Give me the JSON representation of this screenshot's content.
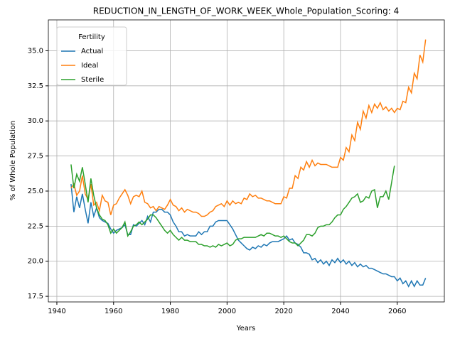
{
  "chart_data": {
    "type": "line",
    "title": "REDUCTION_IN_LENGTH_OF_WORK_WEEK_Whole_Population_Scoring: 4",
    "x_label": "Years",
    "y_label": "% of Whole Population",
    "legend_title": "Fertility",
    "legend": "upper left",
    "grid": true,
    "xlim": [
      1937,
      2076.6
    ],
    "xticks": [
      1940,
      1960,
      1980,
      2000,
      2020,
      2040,
      2060
    ],
    "ylim": [
      17.1,
      37.2
    ],
    "yticks": [
      17.5,
      {
        "value": 20,
        "label": "20.0"
      },
      22.5,
      {
        "value": 25,
        "label": "25.0"
      },
      27.5,
      {
        "value": 30,
        "label": "30.0"
      },
      32.5,
      {
        "value": 35,
        "label": "35.0"
      }
    ],
    "x": [
      1945,
      1946,
      1947,
      1948,
      1949,
      1950,
      1951,
      1952,
      1953,
      1954,
      1955,
      1956,
      1957,
      1958,
      1959,
      1960,
      1961,
      1962,
      1963,
      1964,
      1965,
      1966,
      1967,
      1968,
      1969,
      1970,
      1971,
      1972,
      1973,
      1974,
      1975,
      1976,
      1977,
      1978,
      1979,
      1980,
      1981,
      1982,
      1983,
      1984,
      1985,
      1986,
      1987,
      1988,
      1989,
      1990,
      1991,
      1992,
      1993,
      1994,
      1995,
      1996,
      1997,
      1998,
      1999,
      2000,
      2001,
      2002,
      2003,
      2004,
      2005,
      2006,
      2007,
      2008,
      2009,
      2010,
      2011,
      2012,
      2013,
      2014,
      2015,
      2016,
      2017,
      2018,
      2019,
      2020,
      2021,
      2022,
      2023,
      2024,
      2025,
      2026,
      2027,
      2028,
      2029,
      2030,
      2031,
      2032,
      2033,
      2034,
      2035,
      2036,
      2037,
      2038,
      2039,
      2040,
      2041,
      2042,
      2043,
      2044,
      2045,
      2046,
      2047,
      2048,
      2049,
      2050,
      2051,
      2052,
      2053,
      2054,
      2055,
      2056,
      2057,
      2058,
      2059,
      2060,
      2061,
      2062,
      2063,
      2064,
      2065,
      2066,
      2067,
      2068,
      2069,
      2070
    ],
    "series": [
      {
        "name": "Actual",
        "color": "#1f77b4",
        "values": [
          25.5,
          23.5,
          24.6,
          23.8,
          24.8,
          23.7,
          22.7,
          24.2,
          23.2,
          23.8,
          23.1,
          22.9,
          22.8,
          22.7,
          22.3,
          22.0,
          22.2,
          22.3,
          22.4,
          22.6,
          21.9,
          21.9,
          22.6,
          22.5,
          22.7,
          22.9,
          22.6,
          23.2,
          22.8,
          23.5,
          23.5,
          23.7,
          23.7,
          23.5,
          23.5,
          23.3,
          22.8,
          22.5,
          22.1,
          22.1,
          21.8,
          21.9,
          21.8,
          21.8,
          21.8,
          22.1,
          21.9,
          22.1,
          22.1,
          22.5,
          22.5,
          22.8,
          22.9,
          22.9,
          22.9,
          22.9,
          22.6,
          22.3,
          21.9,
          21.5,
          21.3,
          21.1,
          20.9,
          20.8,
          21.0,
          20.9,
          21.1,
          21.0,
          21.2,
          21.1,
          21.3,
          21.4,
          21.4,
          21.4,
          21.5,
          21.6,
          21.8,
          21.5,
          21.6,
          21.3,
          21.2,
          21.0,
          20.6,
          20.6,
          20.5,
          20.1,
          20.2,
          19.9,
          20.1,
          19.8,
          20.0,
          19.7,
          20.1,
          19.9,
          20.2,
          19.9,
          20.1,
          19.8,
          20.0,
          19.7,
          19.9,
          19.6,
          19.8,
          19.6,
          19.7,
          19.5,
          19.5,
          19.4,
          19.3,
          19.2,
          19.1,
          19.1,
          19.0,
          18.9,
          18.9,
          18.6,
          18.8,
          18.4,
          18.6,
          18.2,
          18.6,
          18.2,
          18.6,
          18.3,
          18.3,
          18.8
        ]
      },
      {
        "name": "Ideal",
        "color": "#ff7f0e",
        "values": [
          25.2,
          25.5,
          24.7,
          25.0,
          26.1,
          24.8,
          24.4,
          25.5,
          24.0,
          24.2,
          23.6,
          24.7,
          24.3,
          24.2,
          23.3,
          24.0,
          24.1,
          24.5,
          24.8,
          25.1,
          24.7,
          24.1,
          24.6,
          24.7,
          24.6,
          25.0,
          24.2,
          24.1,
          23.8,
          23.9,
          23.6,
          23.9,
          23.8,
          23.7,
          24.0,
          24.4,
          24.0,
          23.9,
          23.6,
          23.8,
          23.5,
          23.7,
          23.6,
          23.5,
          23.5,
          23.4,
          23.2,
          23.2,
          23.3,
          23.5,
          23.6,
          23.9,
          24.0,
          24.1,
          23.9,
          24.3,
          24.0,
          24.3,
          24.1,
          24.2,
          24.1,
          24.5,
          24.4,
          24.8,
          24.6,
          24.7,
          24.5,
          24.5,
          24.4,
          24.3,
          24.3,
          24.2,
          24.1,
          24.1,
          24.1,
          24.6,
          24.5,
          25.2,
          25.2,
          26.1,
          25.9,
          26.7,
          26.5,
          27.1,
          26.7,
          27.2,
          26.8,
          27.0,
          26.9,
          26.9,
          26.9,
          26.8,
          26.7,
          26.7,
          26.7,
          27.4,
          27.2,
          28.1,
          27.8,
          29.0,
          28.6,
          29.9,
          29.4,
          30.7,
          30.2,
          31.1,
          30.6,
          31.2,
          30.9,
          31.3,
          30.8,
          31.0,
          30.7,
          30.9,
          30.6,
          30.9,
          30.8,
          31.4,
          31.3,
          32.4,
          32.0,
          33.4,
          33.0,
          34.7,
          34.2,
          35.8
        ]
      },
      {
        "name": "Sterile",
        "color": "#2ca02c",
        "values": [
          26.9,
          25.2,
          26.2,
          25.7,
          26.7,
          25.5,
          24.2,
          25.9,
          24.7,
          23.8,
          23.3,
          23.0,
          22.9,
          22.6,
          22.0,
          22.3,
          22.0,
          22.2,
          22.4,
          22.8,
          21.8,
          22.1,
          22.5,
          22.6,
          22.8,
          22.6,
          22.8,
          23.0,
          23.3,
          23.3,
          23.1,
          22.8,
          22.5,
          22.2,
          22.0,
          22.2,
          21.9,
          21.7,
          21.5,
          21.7,
          21.5,
          21.5,
          21.4,
          21.4,
          21.4,
          21.2,
          21.2,
          21.1,
          21.1,
          21.0,
          21.1,
          21.0,
          21.2,
          21.1,
          21.2,
          21.3,
          21.1,
          21.2,
          21.5,
          21.6,
          21.6,
          21.7,
          21.7,
          21.7,
          21.7,
          21.7,
          21.8,
          21.9,
          21.8,
          22.0,
          22.0,
          21.9,
          21.8,
          21.8,
          21.7,
          21.8,
          21.6,
          21.4,
          21.3,
          21.3,
          21.1,
          21.3,
          21.5,
          21.9,
          21.9,
          21.8,
          22.0,
          22.4,
          22.5,
          22.5,
          22.6,
          22.6,
          22.8,
          23.1,
          23.3,
          23.3,
          23.7,
          23.9,
          24.2,
          24.5,
          24.6,
          24.8,
          24.2,
          24.3,
          24.6,
          24.5,
          25.0,
          25.1,
          23.8,
          24.6,
          24.6,
          25.0,
          24.4,
          25.6,
          26.8,
          null,
          null,
          null,
          null,
          null,
          null,
          null,
          null,
          null,
          null,
          null
        ]
      }
    ]
  }
}
